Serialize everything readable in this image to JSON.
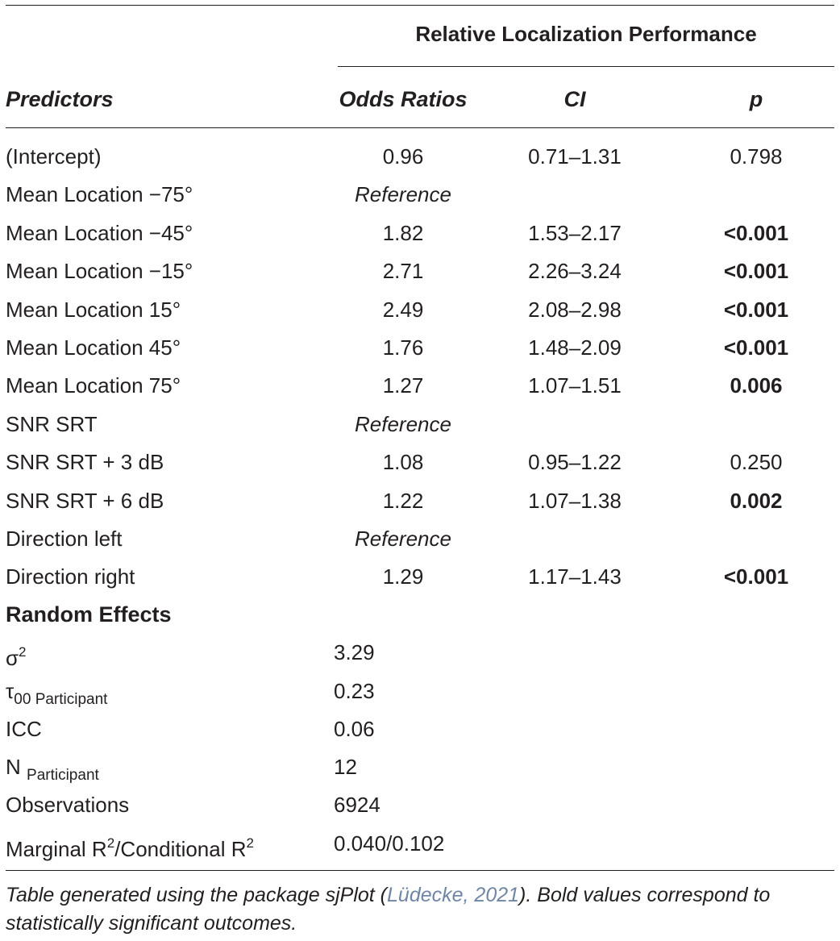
{
  "table": {
    "group_header": "Relative Localization Performance",
    "columns": {
      "predictors": "Predictors",
      "odds": "Odds Ratios",
      "ci": "CI",
      "p": "p"
    },
    "rows": [
      {
        "label": "(Intercept)",
        "odds": "0.96",
        "ci": "0.71–1.31",
        "p": "0.798",
        "p_bold": false
      },
      {
        "label": "Mean Location −75°",
        "odds": "Reference",
        "ci": "",
        "p": "",
        "p_bold": false
      },
      {
        "label": "Mean Location −45°",
        "odds": "1.82",
        "ci": "1.53–2.17",
        "p": "<0.001",
        "p_bold": true
      },
      {
        "label": "Mean Location −15°",
        "odds": "2.71",
        "ci": "2.26–3.24",
        "p": "<0.001",
        "p_bold": true
      },
      {
        "label": "Mean Location 15°",
        "odds": "2.49",
        "ci": "2.08–2.98",
        "p": "<0.001",
        "p_bold": true
      },
      {
        "label": "Mean Location 45°",
        "odds": "1.76",
        "ci": "1.48–2.09",
        "p": "<0.001",
        "p_bold": true
      },
      {
        "label": "Mean Location 75°",
        "odds": "1.27",
        "ci": "1.07–1.51",
        "p": "0.006",
        "p_bold": true
      },
      {
        "label": "SNR SRT",
        "odds": "Reference",
        "ci": "",
        "p": "",
        "p_bold": false
      },
      {
        "label": "SNR SRT + 3 dB",
        "odds": "1.08",
        "ci": "0.95–1.22",
        "p": "0.250",
        "p_bold": false
      },
      {
        "label": "SNR SRT + 6 dB",
        "odds": "1.22",
        "ci": "1.07–1.38",
        "p": "0.002",
        "p_bold": true
      },
      {
        "label": "Direction left",
        "odds": "Reference",
        "ci": "",
        "p": "",
        "p_bold": false
      },
      {
        "label": "Direction right",
        "odds": "1.29",
        "ci": "1.17–1.43",
        "p": "<0.001",
        "p_bold": true
      }
    ],
    "random_effects": {
      "heading": "Random Effects",
      "sigma_symbol": "σ",
      "sigma_sup": "2",
      "sigma_value": "3.29",
      "tau_symbol": "τ",
      "tau_sub": "00 Participant",
      "tau_value": "0.23",
      "icc_label": "ICC",
      "icc_value": "0.06",
      "n_symbol": "N",
      "n_sub": "Participant",
      "n_value": "12",
      "obs_label": "Observations",
      "obs_value": "6924",
      "r2_label_a": "Marginal R",
      "r2_sup_a": "2",
      "r2_label_b": "/Conditional R",
      "r2_sup_b": "2",
      "r2_value": "0.040/0.102"
    }
  },
  "footnote": {
    "before": "Table generated using the package sjPlot (",
    "citation": "Lüdecke, 2021",
    "after": "). Bold values correspond to statistically significant outcomes."
  }
}
